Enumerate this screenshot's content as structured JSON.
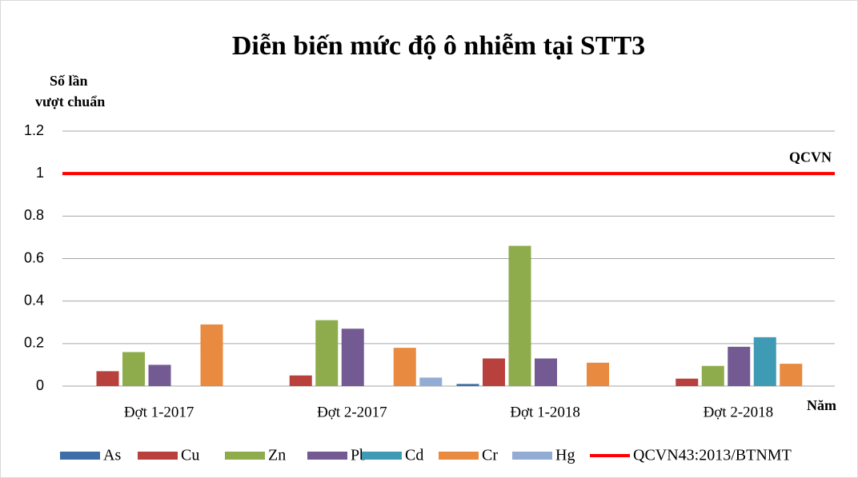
{
  "chart_data": {
    "type": "bar",
    "title": "Diễn biến mức độ ô nhiễm tại STT3",
    "ylabel_lines": [
      "Số lần",
      "vượt chuẩn"
    ],
    "xlabel": "Năm",
    "categories": [
      "Đợt 1-2017",
      "Đợt 2-2017",
      "Đợt 1-2018",
      "Đợt 2-2018"
    ],
    "series": [
      {
        "name": "As",
        "color": "#3f6ea6",
        "values": [
          0,
          0,
          0.01,
          0
        ]
      },
      {
        "name": "Cu",
        "color": "#b9413d",
        "values": [
          0.07,
          0.05,
          0.13,
          0.035
        ]
      },
      {
        "name": "Zn",
        "color": "#8eac4c",
        "values": [
          0.16,
          0.31,
          0.66,
          0.095
        ]
      },
      {
        "name": "Pb",
        "color": "#735a93",
        "values": [
          0.1,
          0.27,
          0.13,
          0.185
        ]
      },
      {
        "name": "Cd",
        "color": "#3f9bb4",
        "values": [
          0,
          0,
          0,
          0.23
        ]
      },
      {
        "name": "Cr",
        "color": "#e88a3f",
        "values": [
          0.29,
          0.18,
          0.11,
          0.105
        ]
      },
      {
        "name": "Hg",
        "color": "#93acd3",
        "values": [
          0,
          0.04,
          0,
          0
        ]
      }
    ],
    "reference_line": {
      "name": "QCVN43:2013/BTNMT",
      "label": "QCVN",
      "value": 1,
      "color": "#ff0000"
    },
    "ylim": [
      0,
      1.2
    ],
    "yticks": [
      0,
      0.2,
      0.4,
      0.6,
      0.8,
      1,
      1.2
    ],
    "grid": true,
    "legend": "bottom"
  }
}
